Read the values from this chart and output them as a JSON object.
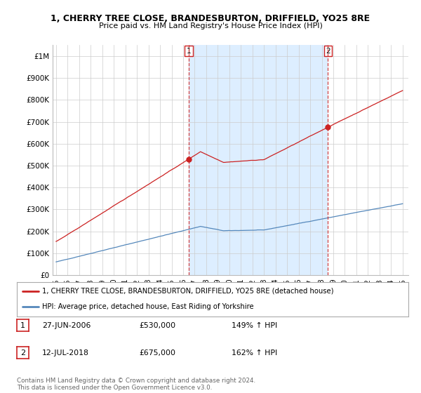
{
  "title_line1": "1, CHERRY TREE CLOSE, BRANDESBURTON, DRIFFIELD, YO25 8RE",
  "title_line2": "Price paid vs. HM Land Registry's House Price Index (HPI)",
  "ylabel_ticks": [
    "£0",
    "£100K",
    "£200K",
    "£300K",
    "£400K",
    "£500K",
    "£600K",
    "£700K",
    "£800K",
    "£900K",
    "£1M"
  ],
  "ytick_values": [
    0,
    100000,
    200000,
    300000,
    400000,
    500000,
    600000,
    700000,
    800000,
    900000,
    1000000
  ],
  "ylim": [
    0,
    1050000
  ],
  "xlim_start": 1994.7,
  "xlim_end": 2025.5,
  "hpi_color": "#5588bb",
  "price_color": "#cc2222",
  "shade_color": "#ddeeff",
  "transaction1_x": 2006.49,
  "transaction1_y": 530000,
  "transaction2_x": 2018.54,
  "transaction2_y": 675000,
  "legend_label1": "1, CHERRY TREE CLOSE, BRANDESBURTON, DRIFFIELD, YO25 8RE (detached house)",
  "legend_label2": "HPI: Average price, detached house, East Riding of Yorkshire",
  "table_row1": [
    "1",
    "27-JUN-2006",
    "£530,000",
    "149% ↑ HPI"
  ],
  "table_row2": [
    "2",
    "12-JUL-2018",
    "£675,000",
    "162% ↑ HPI"
  ],
  "footer": "Contains HM Land Registry data © Crown copyright and database right 2024.\nThis data is licensed under the Open Government Licence v3.0.",
  "background_color": "#ffffff",
  "grid_color": "#cccccc"
}
